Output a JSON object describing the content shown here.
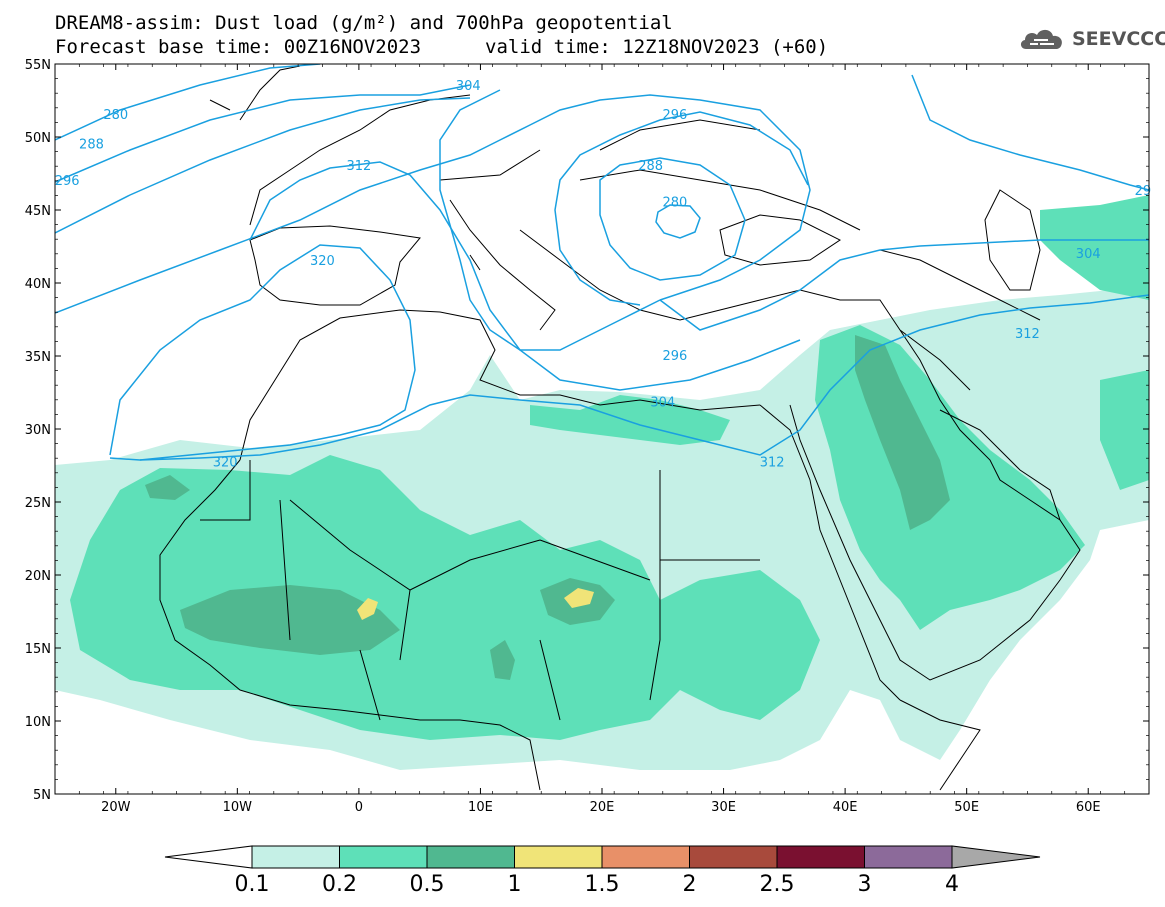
{
  "header": {
    "title_line1": "DREAM8-assim: Dust load (g/m²) and 700hPa geopotential",
    "title_line2a": "Forecast base time: 00Z16NOV2023",
    "title_line2b": "valid time: 12Z18NOV2023 (+60)",
    "logo_text": "SEEVCCC",
    "logo_icon": "cloud-icon"
  },
  "map": {
    "lon_range": [
      -25,
      65
    ],
    "lat_range": [
      5,
      55
    ],
    "lat_labels": [
      "55N",
      "50N",
      "45N",
      "40N",
      "35N",
      "30N",
      "25N",
      "20N",
      "15N",
      "10N",
      "5N"
    ],
    "lat_values": [
      55,
      50,
      45,
      40,
      35,
      30,
      25,
      20,
      15,
      10,
      5
    ],
    "lon_labels": [
      "20W",
      "10W",
      "0",
      "10E",
      "20E",
      "30E",
      "40E",
      "50E",
      "60E"
    ],
    "lon_values": [
      -20,
      -10,
      0,
      10,
      20,
      30,
      40,
      50,
      60
    ],
    "contour_color": "#1aa0e0",
    "contour_labels": [
      {
        "text": "280",
        "lon": -20,
        "lat": 51.5
      },
      {
        "text": "288",
        "lon": -22,
        "lat": 49.5
      },
      {
        "text": "296",
        "lon": -24,
        "lat": 47
      },
      {
        "text": "304",
        "lon": 9,
        "lat": 53.5
      },
      {
        "text": "312",
        "lon": 0,
        "lat": 48
      },
      {
        "text": "320",
        "lon": -3,
        "lat": 41.5
      },
      {
        "text": "296",
        "lon": 26,
        "lat": 51.5
      },
      {
        "text": "288",
        "lon": 24,
        "lat": 48
      },
      {
        "text": "280",
        "lon": 26,
        "lat": 45.5
      },
      {
        "text": "296",
        "lon": 26,
        "lat": 35
      },
      {
        "text": "304",
        "lon": 25,
        "lat": 31.8
      },
      {
        "text": "312",
        "lon": 34,
        "lat": 27.7
      },
      {
        "text": "320",
        "lon": -11,
        "lat": 27.7
      },
      {
        "text": "304",
        "lon": 60,
        "lat": 42
      },
      {
        "text": "312",
        "lon": 55,
        "lat": 36.5
      },
      {
        "text": "29",
        "lon": 64.5,
        "lat": 46.3
      }
    ]
  },
  "colorbar": {
    "labels": [
      "0.1",
      "0.2",
      "0.5",
      "1",
      "1.5",
      "2",
      "2.5",
      "3",
      "4"
    ],
    "colors": [
      "#c5f0e6",
      "#5ee0b8",
      "#50b890",
      "#f0e478",
      "#e89068",
      "#a84a3c",
      "#7a1030",
      "#8c6a9a"
    ],
    "under_color": "#ffffff",
    "over_color": "#a8a8a8"
  }
}
